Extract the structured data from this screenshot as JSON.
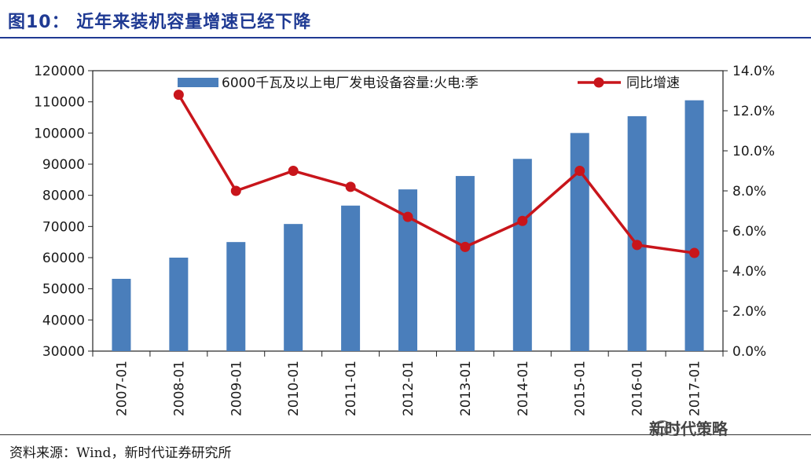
{
  "header": {
    "title": "图10：   近年来装机容量增速已经下降"
  },
  "footer": {
    "source": "资料来源：Wind，新时代证券研究所",
    "watermark": "新时代策略"
  },
  "icons": {
    "watermark_icon": "wechat-icon"
  },
  "colors": {
    "bar": "#4a7ebb",
    "line": "#c8151b",
    "title": "#1f3a93"
  },
  "chart_data": {
    "type": "bar+line",
    "categories": [
      "2007-01",
      "2008-01",
      "2009-01",
      "2010-01",
      "2011-01",
      "2012-01",
      "2013-01",
      "2014-01",
      "2015-01",
      "2016-01",
      "2017-01"
    ],
    "left_axis": {
      "min": 30000,
      "max": 120000,
      "step": 10000,
      "ticks": [
        "30000",
        "40000",
        "50000",
        "60000",
        "70000",
        "80000",
        "90000",
        "100000",
        "110000",
        "120000"
      ]
    },
    "right_axis": {
      "min": 0,
      "max": 14,
      "step": 2,
      "ticks": [
        "0.0%",
        "2.0%",
        "4.0%",
        "6.0%",
        "8.0%",
        "10.0%",
        "12.0%",
        "14.0%"
      ]
    },
    "series": [
      {
        "name": "6000千瓦及以上电厂发电设备容量:火电:季",
        "type": "bar",
        "axis": "left",
        "values": [
          53200,
          60000,
          65000,
          70800,
          76700,
          81900,
          86200,
          91700,
          100000,
          105400,
          110500
        ]
      },
      {
        "name": "同比增速",
        "type": "line",
        "axis": "right",
        "values": [
          null,
          12.8,
          8.0,
          9.0,
          8.2,
          6.7,
          5.2,
          6.5,
          9.0,
          5.3,
          4.9
        ]
      }
    ],
    "legend_position": "top",
    "grid": false
  }
}
